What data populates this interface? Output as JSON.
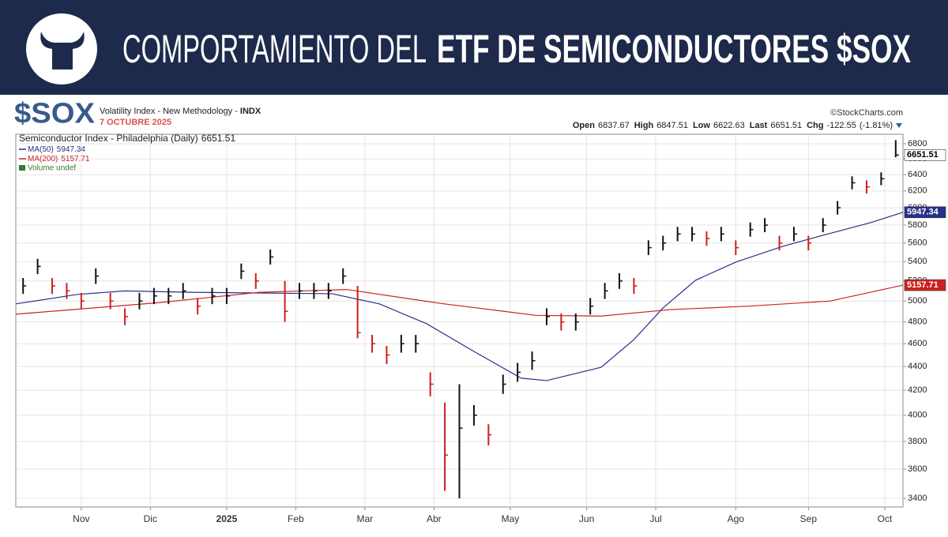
{
  "header": {
    "title_light": "COMPORTAMIENTO DEL",
    "title_bold": "ETF DE SEMICONDUCTORES $SOX"
  },
  "chart_data": {
    "type": "ohlc",
    "symbol": "$SOX",
    "subtitle": "Volatility Index - New Methodology - ",
    "exchange": "INDX",
    "date_label": "7 OCTUBRE 2025",
    "source": "©StockCharts.com",
    "quote": [
      {
        "label": "Open",
        "value": 6837.67
      },
      {
        "label": "High",
        "value": 6847.51
      },
      {
        "label": "Low",
        "value": 6622.63
      },
      {
        "label": "Last",
        "value": 6651.51
      },
      {
        "label": "Chg",
        "value": -122.55,
        "pct_label": "(-1.81%)"
      }
    ],
    "price": {
      "name": "Semiconductor Index - Philadelphia (Daily)",
      "last": 6651.51,
      "x": [
        2,
        6,
        10,
        14,
        18,
        22,
        26,
        30,
        34,
        38,
        42,
        46,
        50,
        54,
        58,
        62,
        66,
        70,
        74,
        78,
        82,
        86,
        90,
        94,
        98,
        102,
        106,
        110,
        114,
        118,
        122,
        126,
        130,
        134,
        138,
        142,
        146,
        150,
        154,
        158,
        162,
        166,
        170,
        174,
        178,
        182,
        186,
        190,
        194,
        198,
        202,
        206,
        210,
        214,
        218,
        222,
        226,
        230,
        234,
        238,
        242
      ],
      "high": [
        5230,
        5430,
        5230,
        5180,
        5080,
        5330,
        5080,
        4930,
        5080,
        5130,
        5130,
        5180,
        5030,
        5130,
        5130,
        5380,
        5280,
        5530,
        5200,
        5180,
        5180,
        5180,
        5330,
        5150,
        4680,
        4580,
        4680,
        4680,
        4350,
        4100,
        4250,
        4080,
        3930,
        4330,
        4430,
        4530,
        4930,
        4880,
        4880,
        5030,
        5180,
        5280,
        5230,
        5630,
        5680,
        5780,
        5780,
        5730,
        5780,
        5630,
        5830,
        5880,
        5680,
        5780,
        5680,
        5880,
        6080,
        6380,
        6330,
        6430,
        6847.51
      ],
      "low": [
        5070,
        5270,
        5070,
        5020,
        4920,
        5170,
        4920,
        4770,
        4920,
        4970,
        4970,
        5020,
        4870,
        4970,
        4970,
        5220,
        5120,
        5370,
        4800,
        5020,
        5020,
        5020,
        5170,
        4650,
        4520,
        4420,
        4520,
        4520,
        4150,
        3450,
        3400,
        3920,
        3770,
        4170,
        4270,
        4370,
        4770,
        4720,
        4720,
        4870,
        5020,
        5120,
        5070,
        5470,
        5520,
        5620,
        5620,
        5570,
        5620,
        5470,
        5670,
        5720,
        5520,
        5620,
        5520,
        5720,
        5920,
        6220,
        6170,
        6270,
        6622.63
      ],
      "close": [
        5150,
        5350,
        5150,
        5100,
        5000,
        5250,
        5000,
        4850,
        5000,
        5050,
        5050,
        5100,
        4950,
        5050,
        5050,
        5300,
        5200,
        5450,
        4900,
        5100,
        5100,
        5100,
        5250,
        4700,
        4600,
        4500,
        4600,
        4600,
        4250,
        3700,
        3900,
        4000,
        3850,
        4250,
        4350,
        4450,
        4850,
        4800,
        4800,
        4950,
        5100,
        5200,
        5150,
        5550,
        5600,
        5700,
        5700,
        5650,
        5700,
        5550,
        5750,
        5800,
        5600,
        5700,
        5600,
        5800,
        6000,
        6300,
        6250,
        6350,
        6651.51
      ],
      "up_color": "#111111",
      "down_color": "#cc1f1f"
    },
    "series": [
      {
        "name": "MA(50)",
        "color": "#27308a",
        "last": 5947.34,
        "x": [
          0,
          17,
          30,
          48,
          67,
          87,
          100,
          113,
          126,
          139,
          146,
          161,
          170,
          178,
          187,
          198,
          211,
          222,
          235,
          244
        ],
        "values": [
          4972,
          5065,
          5100,
          5086,
          5079,
          5072,
          4972,
          4783,
          4531,
          4300,
          4280,
          4393,
          4637,
          4933,
          5208,
          5395,
          5565,
          5686,
          5827,
          5947.34
        ]
      },
      {
        "name": "MA(200)",
        "color": "#cc2222",
        "last": 5157.71,
        "x": [
          0,
          39,
          67,
          91,
          117,
          143,
          161,
          180,
          202,
          224,
          244
        ],
        "values": [
          4873,
          4983,
          5086,
          5114,
          4976,
          4862,
          4855,
          4917,
          4951,
          5000,
          5157.71
        ]
      }
    ],
    "volume_label": "Volume undef",
    "log": true,
    "grid": true,
    "xlim": [
      0,
      244
    ],
    "ylim": [
      3343,
      6927
    ],
    "yticks": [
      3400,
      3600,
      3800,
      4000,
      4200,
      4400,
      4600,
      4800,
      5000,
      5200,
      5400,
      5600,
      5800,
      6000,
      6200,
      6400,
      6600,
      6800
    ],
    "xticks": [
      {
        "value": 18,
        "label": "Nov"
      },
      {
        "value": 37,
        "label": "Dic"
      },
      {
        "value": 58,
        "label": "2025"
      },
      {
        "value": 77,
        "label": "Feb"
      },
      {
        "value": 96,
        "label": "Mar"
      },
      {
        "value": 115,
        "label": "Abr"
      },
      {
        "value": 136,
        "label": "May"
      },
      {
        "value": 157,
        "label": "Jun"
      },
      {
        "value": 176,
        "label": "Jul"
      },
      {
        "value": 198,
        "label": "Ago"
      },
      {
        "value": 218,
        "label": "Sep"
      },
      {
        "value": 239,
        "label": "Oct"
      }
    ]
  }
}
